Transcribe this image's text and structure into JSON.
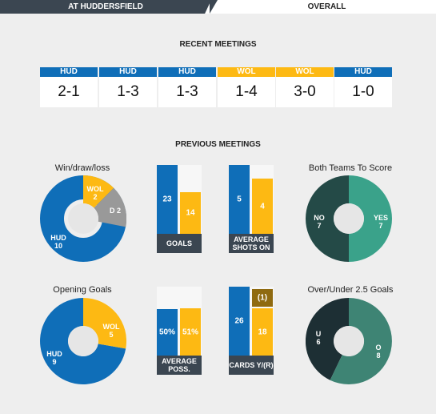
{
  "tabs": {
    "active": "AT HUDDERSFIELD",
    "inactive": "OVERALL"
  },
  "recent_meetings": {
    "title": "RECENT MEETINGS",
    "items": [
      {
        "team": "HUD",
        "score": "2-1",
        "color": "#0f6eb8"
      },
      {
        "team": "HUD",
        "score": "1-3",
        "color": "#0f6eb8"
      },
      {
        "team": "HUD",
        "score": "1-3",
        "color": "#0f6eb8"
      },
      {
        "team": "WOL",
        "score": "1-4",
        "color": "#fdb913"
      },
      {
        "team": "WOL",
        "score": "3-0",
        "color": "#fdb913"
      },
      {
        "team": "HUD",
        "score": "1-0",
        "color": "#0f6eb8"
      }
    ]
  },
  "previous_meetings": {
    "title": "PREVIOUS MEETINGS",
    "win_draw_loss": {
      "label": "Win/draw/loss",
      "hud": {
        "name": "HUD",
        "value": 10
      },
      "wol": {
        "name": "WOL",
        "value": 2
      },
      "draw": {
        "name": "D",
        "value": 2
      }
    },
    "goals": {
      "label": "GOALS",
      "hud": "23",
      "wol": "14",
      "hud_frac": 1.0,
      "wol_frac": 0.609
    },
    "average_shots_on": {
      "label": "AVERAGE SHOTS ON",
      "hud": "5",
      "wol": "4",
      "hud_frac": 1.0,
      "wol_frac": 0.8
    },
    "both_teams_to_score": {
      "label": "Both Teams To Score",
      "no": {
        "name": "NO",
        "value": 7
      },
      "yes": {
        "name": "YES",
        "value": 7
      }
    },
    "opening_goals": {
      "label": "Opening Goals",
      "hud": {
        "name": "HUD",
        "value": 9
      },
      "wol": {
        "name": "WOL",
        "value": 5
      }
    },
    "average_possession": {
      "label": "AVERAGE POSS.",
      "hud": "50%",
      "wol": "51%",
      "hud_frac": 0.5,
      "wol_frac": 0.51
    },
    "cards": {
      "label": "CARDS Y/(R)",
      "hud": "26",
      "wol": "18",
      "wol_red": "(1)",
      "hud_frac": 1.0,
      "wol_frac": 0.692,
      "wol_red_frac": 0.25
    },
    "over_under": {
      "label": "Over/Under 2.5 Goals",
      "under": {
        "name": "U",
        "value": 6
      },
      "over": {
        "name": "O",
        "value": 8
      }
    }
  },
  "colors": {
    "hud": "#0f6eb8",
    "wol": "#fdb913",
    "draw": "#999999",
    "btts_no": "#244a47",
    "btts_yes": "#3aa28a",
    "under": "#1d2f34",
    "over": "#3e8474",
    "label_bg": "#3b4651",
    "red_card": "#8f6a10"
  }
}
